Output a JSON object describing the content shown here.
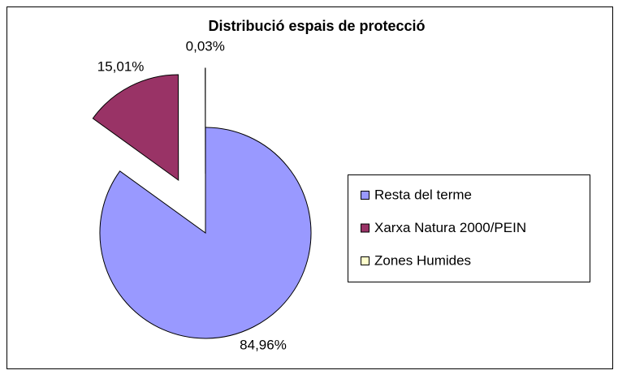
{
  "chart_data": {
    "type": "pie",
    "title": "Distribució espais de protecció",
    "categories": [
      "Resta del terme",
      "Xarxa Natura 2000/PEIN",
      "Zones Humides"
    ],
    "values": [
      84.96,
      15.01,
      0.03
    ],
    "value_labels": [
      "84,96%",
      "15,01%",
      "0,03%"
    ],
    "colors": [
      "#9999ff",
      "#993366",
      "#ffffcc"
    ],
    "legend": "right"
  }
}
